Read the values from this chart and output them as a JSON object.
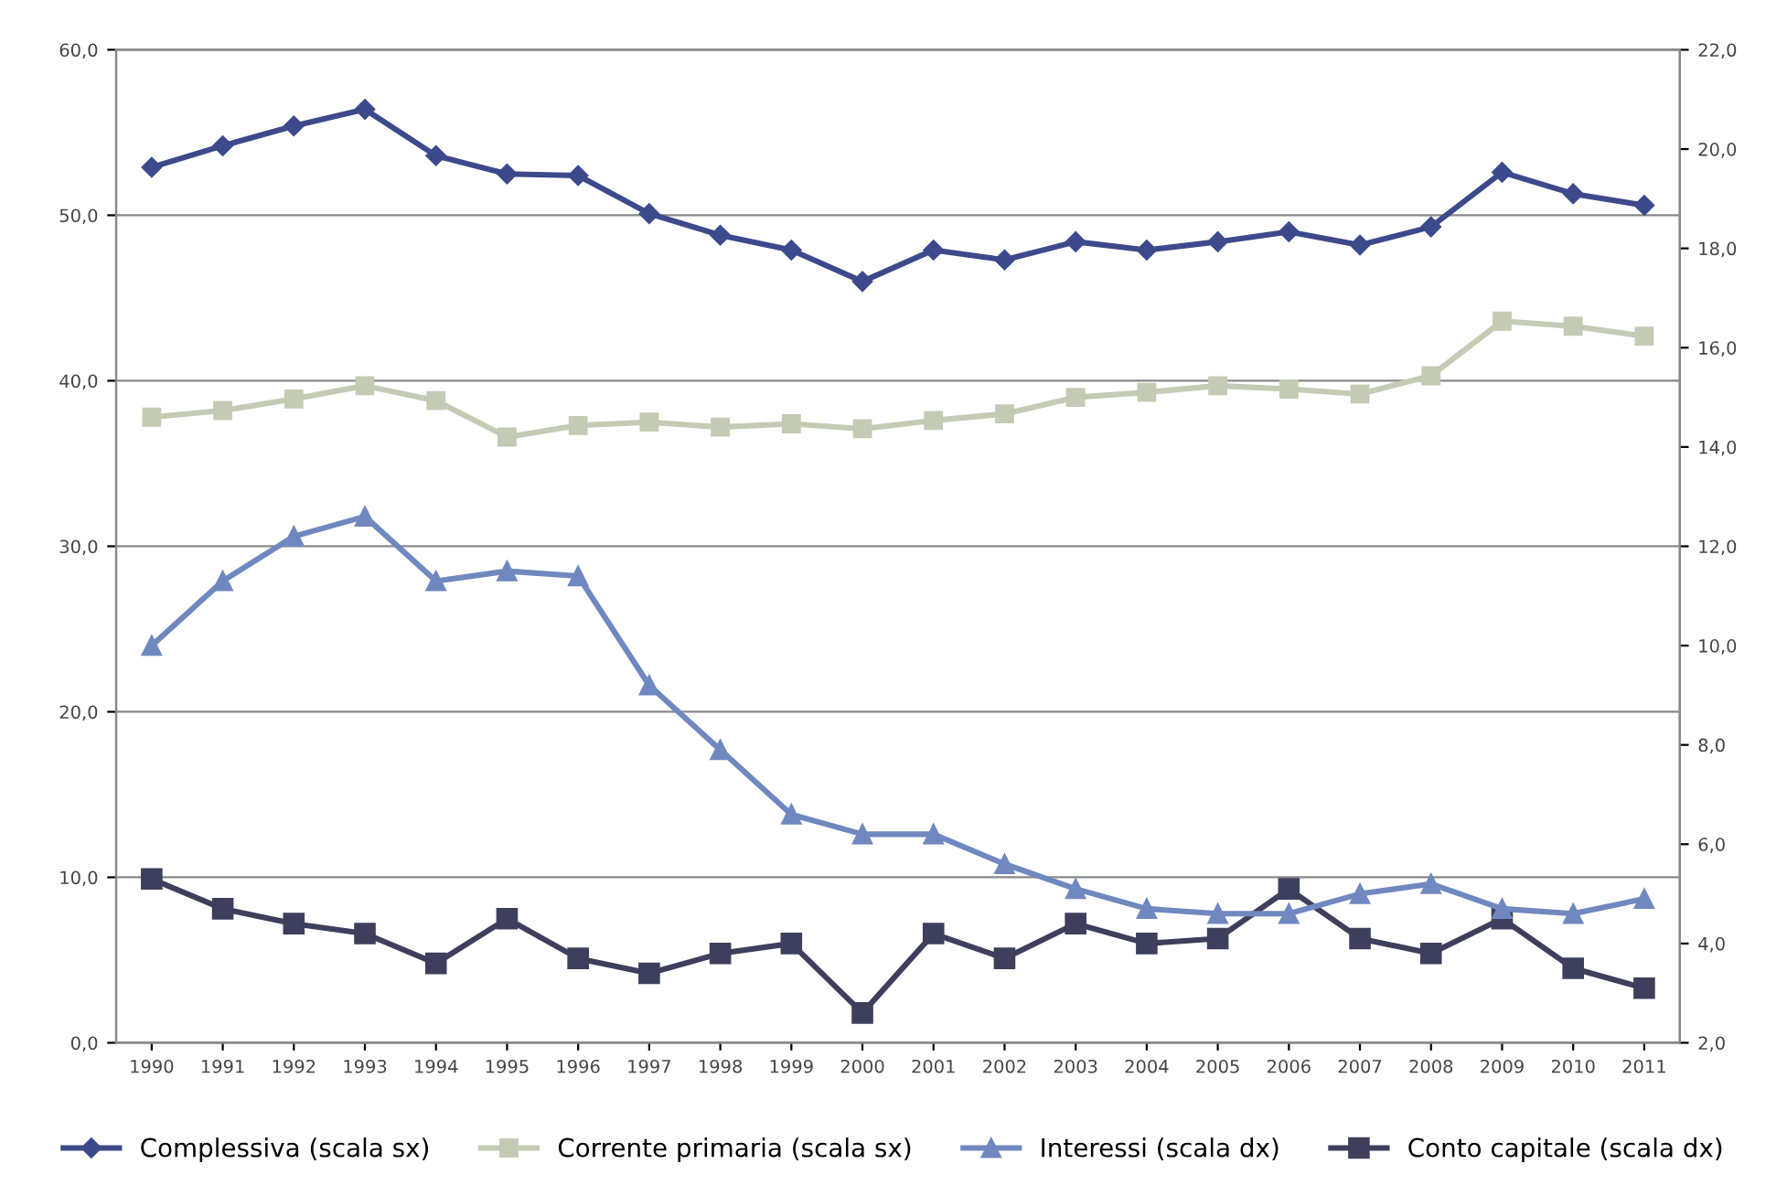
{
  "chart_data": {
    "type": "line",
    "categories": [
      "1990",
      "1991",
      "1992",
      "1993",
      "1994",
      "1995",
      "1996",
      "1997",
      "1998",
      "1999",
      "2000",
      "2001",
      "2002",
      "2003",
      "2004",
      "2005",
      "2006",
      "2007",
      "2008",
      "2009",
      "2010",
      "2011"
    ],
    "series": [
      {
        "name": "Complessiva (scala sx)",
        "color": "#3c4a8c",
        "marker": "diamond",
        "values": [
          52.9,
          54.2,
          55.4,
          56.4,
          53.6,
          52.5,
          52.4,
          50.1,
          48.8,
          47.9,
          46.0,
          47.9,
          47.3,
          48.4,
          47.9,
          48.4,
          49.0,
          48.2,
          49.3,
          52.6,
          51.3,
          50.6
        ]
      },
      {
        "name": "Corrente primaria (scala sx)",
        "color": "#c4cbb4",
        "marker": "square",
        "values": [
          37.8,
          38.2,
          38.9,
          39.7,
          38.8,
          36.6,
          37.3,
          37.5,
          37.2,
          37.4,
          37.1,
          37.6,
          38.0,
          39.0,
          39.3,
          39.7,
          39.5,
          39.2,
          40.3,
          43.6,
          43.3,
          42.7
        ]
      },
      {
        "name": "Interessi (scala dx)",
        "color": "#7088c0",
        "marker": "triangle",
        "axis": "y2",
        "values": [
          10.0,
          11.3,
          12.2,
          12.6,
          11.3,
          11.5,
          11.4,
          9.2,
          7.9,
          6.6,
          6.2,
          6.2,
          5.6,
          5.1,
          4.7,
          4.6,
          4.6,
          5.0,
          5.2,
          4.7,
          4.6,
          4.9
        ]
      },
      {
        "name": "Conto capitale (scala dx)",
        "color": "#3d3f5c",
        "marker": "square",
        "axis": "y2",
        "values": [
          5.3,
          4.7,
          4.4,
          4.2,
          3.6,
          4.5,
          3.7,
          3.4,
          3.8,
          4.0,
          2.6,
          4.2,
          3.7,
          4.4,
          4.0,
          4.1,
          5.1,
          4.1,
          3.8,
          4.5,
          3.5,
          3.1
        ]
      }
    ],
    "ylim": [
      0,
      60
    ],
    "yticks": [
      {
        "value": 0,
        "label": "0,0"
      },
      {
        "value": 10,
        "label": "10,0"
      },
      {
        "value": 20,
        "label": "20,0"
      },
      {
        "value": 30,
        "label": "30,0"
      },
      {
        "value": 40,
        "label": "40,0"
      },
      {
        "value": 50,
        "label": "50,0"
      },
      {
        "value": 60,
        "label": "60,0"
      }
    ],
    "y2lim": [
      2,
      22
    ],
    "y2ticks": [
      {
        "value": 2,
        "label": "2,0"
      },
      {
        "value": 4,
        "label": "4,0"
      },
      {
        "value": 6,
        "label": "6,0"
      },
      {
        "value": 8,
        "label": "8,0"
      },
      {
        "value": 10,
        "label": "10,0"
      },
      {
        "value": 12,
        "label": "12,0"
      },
      {
        "value": 14,
        "label": "14,0"
      },
      {
        "value": 16,
        "label": "16,0"
      },
      {
        "value": 18,
        "label": "18,0"
      },
      {
        "value": 20,
        "label": "20,0"
      },
      {
        "value": 22,
        "label": "22,0"
      }
    ],
    "grid": "y",
    "legend": "bottom",
    "line_style": "solid"
  }
}
